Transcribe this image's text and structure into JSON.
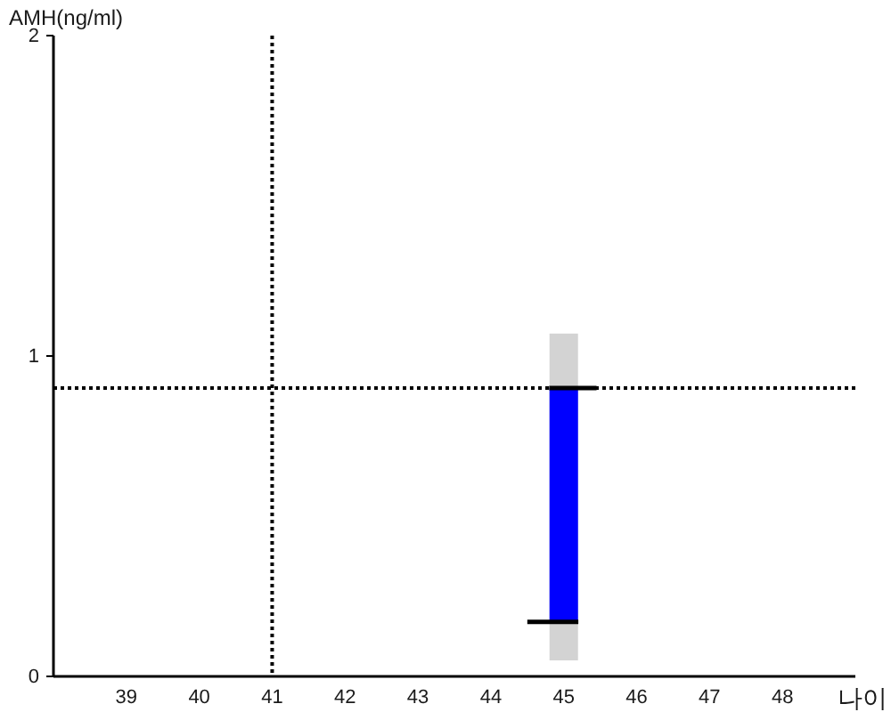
{
  "chart_data": {
    "type": "bar",
    "xlabel": "나이",
    "ylabel": "AMH(ng/ml)",
    "xlim": [
      38,
      49
    ],
    "xticks": [
      39,
      40,
      41,
      42,
      43,
      44,
      45,
      46,
      47,
      48
    ],
    "ylim": [
      0,
      2
    ],
    "yticks": [
      0,
      1,
      2
    ],
    "series": [
      {
        "color": "#d3d3d3",
        "x": [
          45
        ],
        "base": [
          0.05
        ],
        "values": [
          1.02
        ]
      },
      {
        "color": "#0000ff",
        "x": [
          45
        ],
        "base": [
          0.17
        ],
        "values": [
          0.73
        ]
      },
      {
        "type": "line",
        "color": "#000000",
        "x": [
          44.8,
          45.45
        ],
        "values": [
          0.9,
          0.9
        ]
      },
      {
        "type": "line",
        "color": "#000000",
        "x": [
          44.5,
          45.2
        ],
        "values": [
          0.17,
          0.17
        ]
      }
    ],
    "ref_lines": [
      {
        "axis": "x",
        "value": 41,
        "color": "#000000",
        "line_style": "dotted"
      },
      {
        "axis": "y",
        "value": 0.9,
        "color": "#000000",
        "line_style": "dotted"
      }
    ]
  }
}
